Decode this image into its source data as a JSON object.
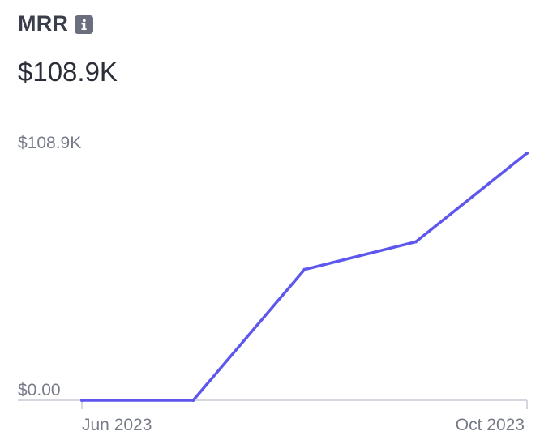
{
  "metric": {
    "title": "MRR",
    "icon": "info-icon",
    "current_value": "$108.9K"
  },
  "colors": {
    "line": "#5d57ee",
    "axis": "#c8c9d3",
    "title": "#3b3f4c",
    "tick_label": "#777b88"
  },
  "chart_data": {
    "type": "line",
    "title": "",
    "xlabel": "",
    "ylabel": "",
    "x": [
      "2023-06",
      "2023-07",
      "2023-08",
      "2023-09",
      "2023-10"
    ],
    "x_tick_labels": [
      "Jun 2023",
      "Oct 2023"
    ],
    "y_tick_labels": [
      "$0.00",
      "$108.9K"
    ],
    "ylim": [
      0,
      108900
    ],
    "series": [
      {
        "values": [
          0,
          0,
          57600,
          69800,
          108900
        ]
      }
    ],
    "grid": false,
    "legend": "none"
  }
}
